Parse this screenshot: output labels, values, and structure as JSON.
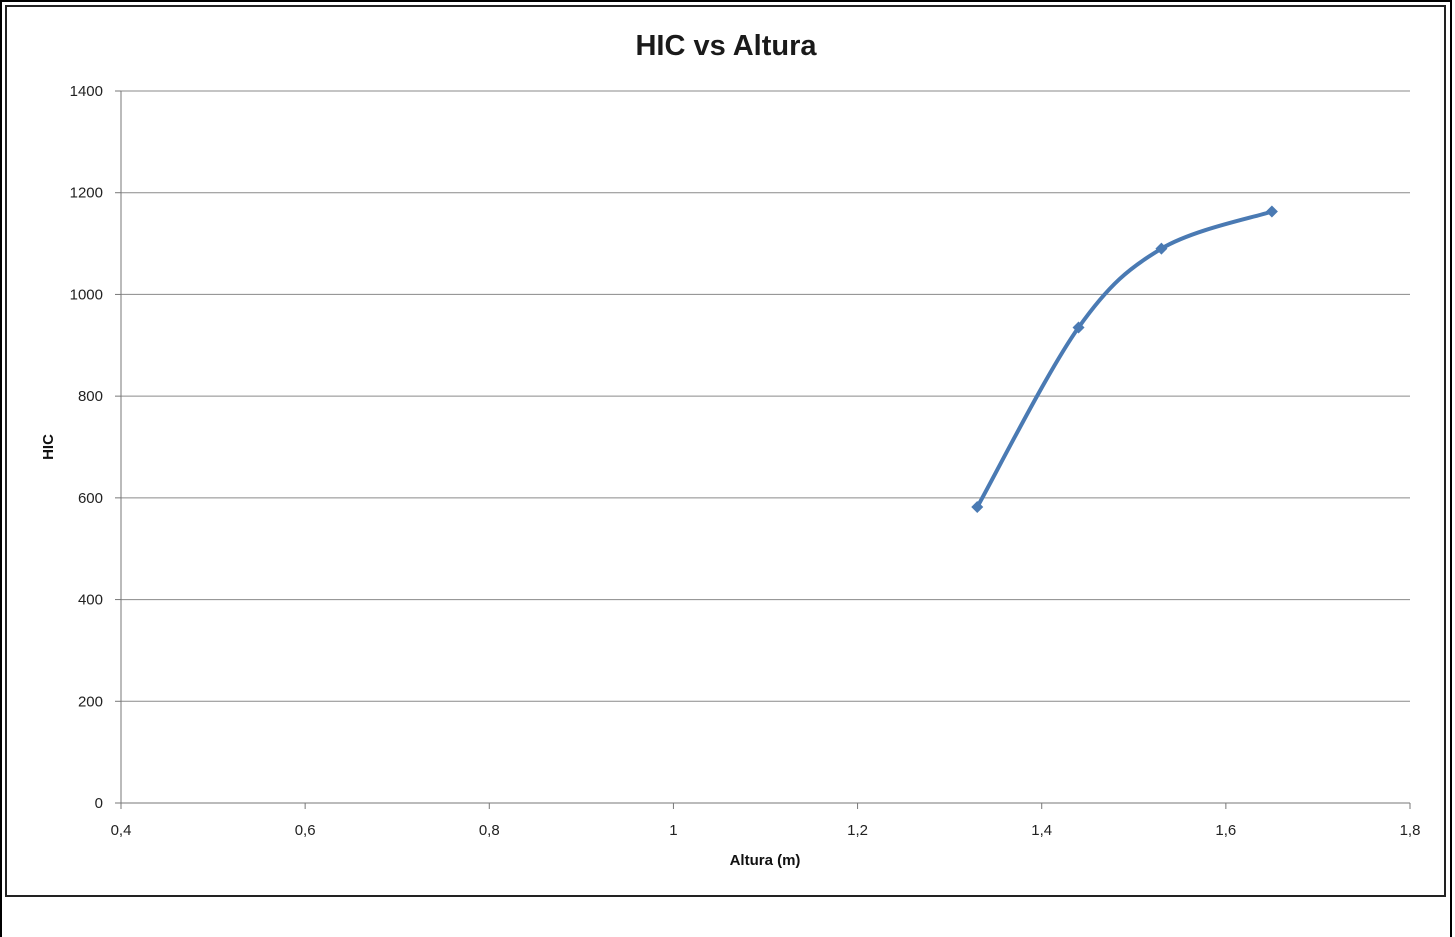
{
  "chart_data": {
    "type": "line",
    "title": "HIC vs Altura",
    "xlabel": "Altura (m)",
    "ylabel": "HIC",
    "xlim": [
      0.4,
      1.8
    ],
    "ylim": [
      0,
      1400
    ],
    "x_ticks": [
      "0,4",
      "0,6",
      "0,8",
      "1",
      "1,2",
      "1,4",
      "1,6",
      "1,8"
    ],
    "y_ticks": [
      "0",
      "200",
      "400",
      "600",
      "800",
      "1000",
      "1200",
      "1400"
    ],
    "grid": "horizontal",
    "smooth": true,
    "marker": "diamond",
    "series": [
      {
        "x": [
          1.33,
          1.44,
          1.53,
          1.65
        ],
        "y": [
          582,
          935,
          1090,
          1163
        ],
        "color": "#4a7ab3"
      }
    ]
  }
}
